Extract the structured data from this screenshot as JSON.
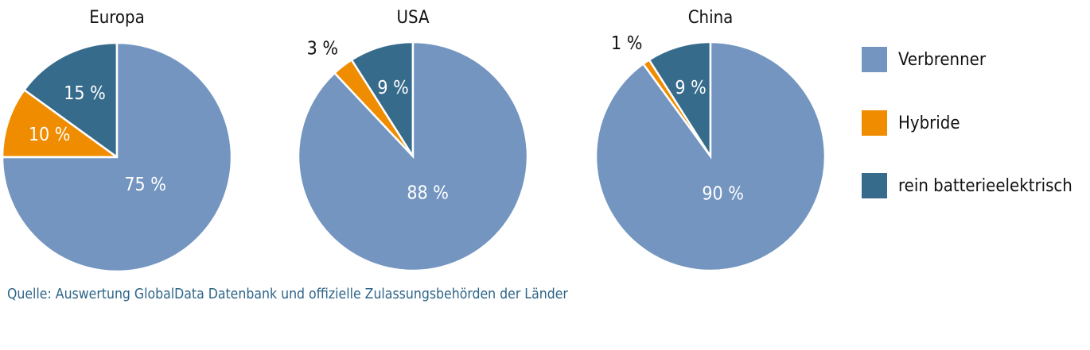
{
  "chart_data": {
    "type": "pie",
    "legend_position": "right",
    "series_names": [
      "Verbrenner",
      "Hybride",
      "rein batterieelektrisch"
    ],
    "colors": {
      "Verbrenner": "#7395c0",
      "Hybride": "#f08c00",
      "rein batterieelektrisch": "#376b8c"
    },
    "charts": [
      {
        "title": "Europa",
        "slices": [
          {
            "name": "Verbrenner",
            "value": 75,
            "label": "75 %"
          },
          {
            "name": "Hybride",
            "value": 10,
            "label": "10 %"
          },
          {
            "name": "rein batterieelektrisch",
            "value": 15,
            "label": "15 %"
          }
        ]
      },
      {
        "title": "USA",
        "slices": [
          {
            "name": "Verbrenner",
            "value": 88,
            "label": "88 %"
          },
          {
            "name": "Hybride",
            "value": 3,
            "label": "3 %"
          },
          {
            "name": "rein batterieelektrisch",
            "value": 9,
            "label": "9 %"
          }
        ]
      },
      {
        "title": "China",
        "slices": [
          {
            "name": "Verbrenner",
            "value": 90,
            "label": "90 %"
          },
          {
            "name": "Hybride",
            "value": 1,
            "label": "1 %"
          },
          {
            "name": "rein batterieelektrisch",
            "value": 9,
            "label": "9 %"
          }
        ]
      }
    ]
  },
  "source": "Quelle: Auswertung GlobalData Datenbank und offizielle Zulassungsbehörden der Länder"
}
